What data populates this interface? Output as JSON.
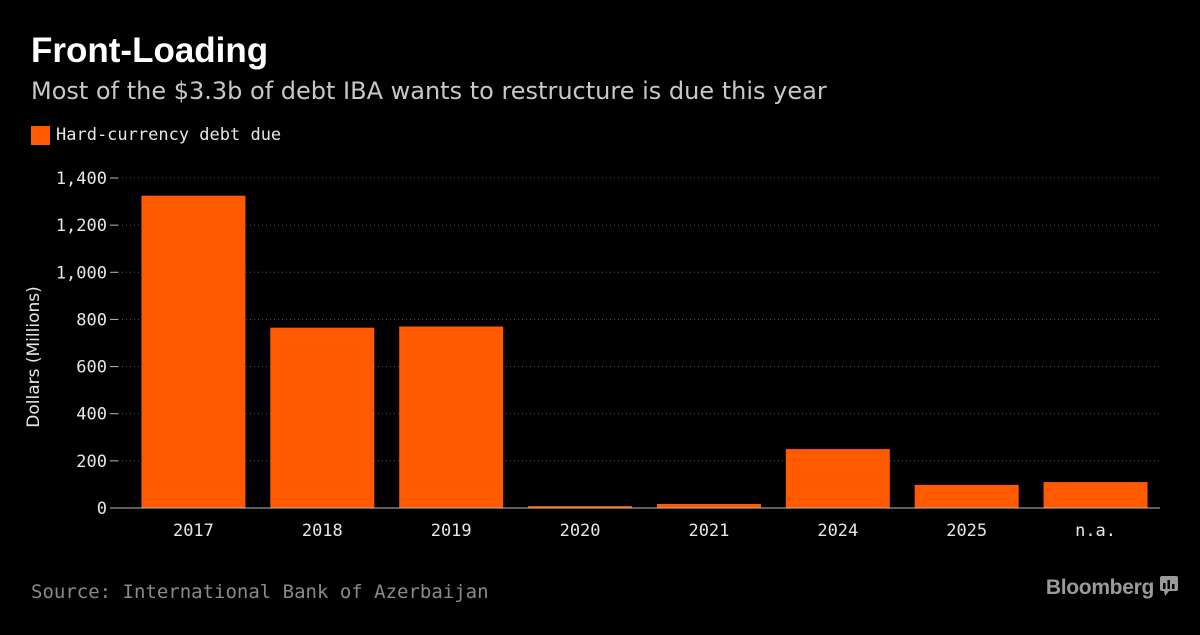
{
  "header": {
    "title": "Front-Loading",
    "subtitle": "Most of the $3.3b of debt IBA wants to restructure is due this year"
  },
  "legend": {
    "label": "Hard-currency debt due"
  },
  "colors": {
    "bar": "#ff5a00",
    "background": "#000000",
    "grid": "#555555",
    "axis_text": "#e6e6e6"
  },
  "chart_data": {
    "type": "bar",
    "title": "Front-Loading",
    "subtitle": "Most of the $3.3b of debt IBA wants to restructure is due this year",
    "xlabel": "",
    "ylabel": "Dollars (Millions)",
    "categories": [
      "2017",
      "2018",
      "2019",
      "2020",
      "2021",
      "2024",
      "2025",
      "n.a."
    ],
    "series": [
      {
        "name": "Hard-currency debt due",
        "values": [
          1325,
          765,
          770,
          8,
          17,
          250,
          98,
          110
        ]
      }
    ],
    "ylim": [
      0,
      1400
    ],
    "yticks": [
      0,
      200,
      400,
      600,
      800,
      1000,
      1200,
      1400
    ],
    "ytick_labels": [
      "0",
      "200",
      "400",
      "600",
      "800",
      "1,000",
      "1,200",
      "1,400"
    ],
    "grid": true,
    "legend_position": "top-left"
  },
  "footer": {
    "source": "Source: International Bank of Azerbaijan",
    "brand": "Bloomberg",
    "brand_icon": "bloomberg-chart-icon"
  }
}
